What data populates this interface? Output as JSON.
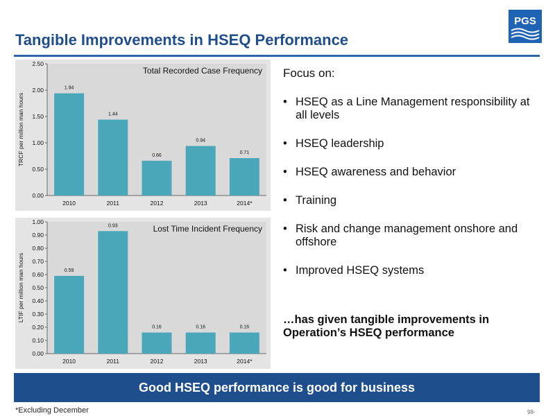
{
  "title": "Tangible Improvements in HSEQ Performance",
  "logo_text": "PGS",
  "colors": {
    "title": "#1f4e8c",
    "bar": "#4aa6b9",
    "plot_bg": "#d9d9d9",
    "banner": "#1f4e8c"
  },
  "charts": [
    {
      "title": "Total Recorded Case Frequency",
      "ylabel": "TRCF per million man hours",
      "y_ticks": [
        "0.00",
        "0.50",
        "1.00",
        "1.50",
        "2.00",
        "2.50"
      ],
      "categories": [
        "2010",
        "2011",
        "2012",
        "2013",
        "2014*"
      ],
      "value_labels": [
        "1.94",
        "1.44",
        "0.66",
        "0.94",
        "0.71"
      ]
    },
    {
      "title": "Lost Time Incident Frequency",
      "ylabel": "LTIF per million man hours",
      "y_ticks": [
        "0.00",
        "0.10",
        "0.20",
        "0.30",
        "0.40",
        "0.50",
        "0.60",
        "0.70",
        "0.80",
        "0.90",
        "1.00"
      ],
      "categories": [
        "2010",
        "2011",
        "2012",
        "2013",
        "2014*"
      ],
      "value_labels": [
        "0.59",
        "0.93",
        "0.16",
        "0.16",
        "0.16"
      ]
    }
  ],
  "chart_data": [
    {
      "type": "bar",
      "title": "Total Recorded Case Frequency",
      "ylabel": "TRCF per million man hours",
      "categories": [
        "2010",
        "2011",
        "2012",
        "2013",
        "2014*"
      ],
      "values": [
        1.94,
        1.44,
        0.66,
        0.94,
        0.71
      ],
      "ylim": [
        0,
        2.5
      ],
      "grid": false,
      "legend": "none"
    },
    {
      "type": "bar",
      "title": "Lost Time Incident Frequency",
      "ylabel": "LTIF per million man hours",
      "categories": [
        "2010",
        "2011",
        "2012",
        "2013",
        "2014*"
      ],
      "values": [
        0.59,
        0.93,
        0.16,
        0.16,
        0.16
      ],
      "ylim": [
        0,
        1.0
      ],
      "grid": false,
      "legend": "none"
    }
  ],
  "focus": {
    "heading": "Focus on:",
    "items": [
      "HSEQ  as a Line Management responsibility at all levels",
      "HSEQ leadership",
      "HSEQ awareness and behavior",
      "Training",
      "Risk and change management onshore and offshore",
      "Improved HSEQ systems"
    ]
  },
  "conclusion": "…has given tangible improvements in Operation’s HSEQ performance",
  "banner": "Good HSEQ performance is good for business",
  "footnote": "*Excluding December",
  "page_number": "98-"
}
